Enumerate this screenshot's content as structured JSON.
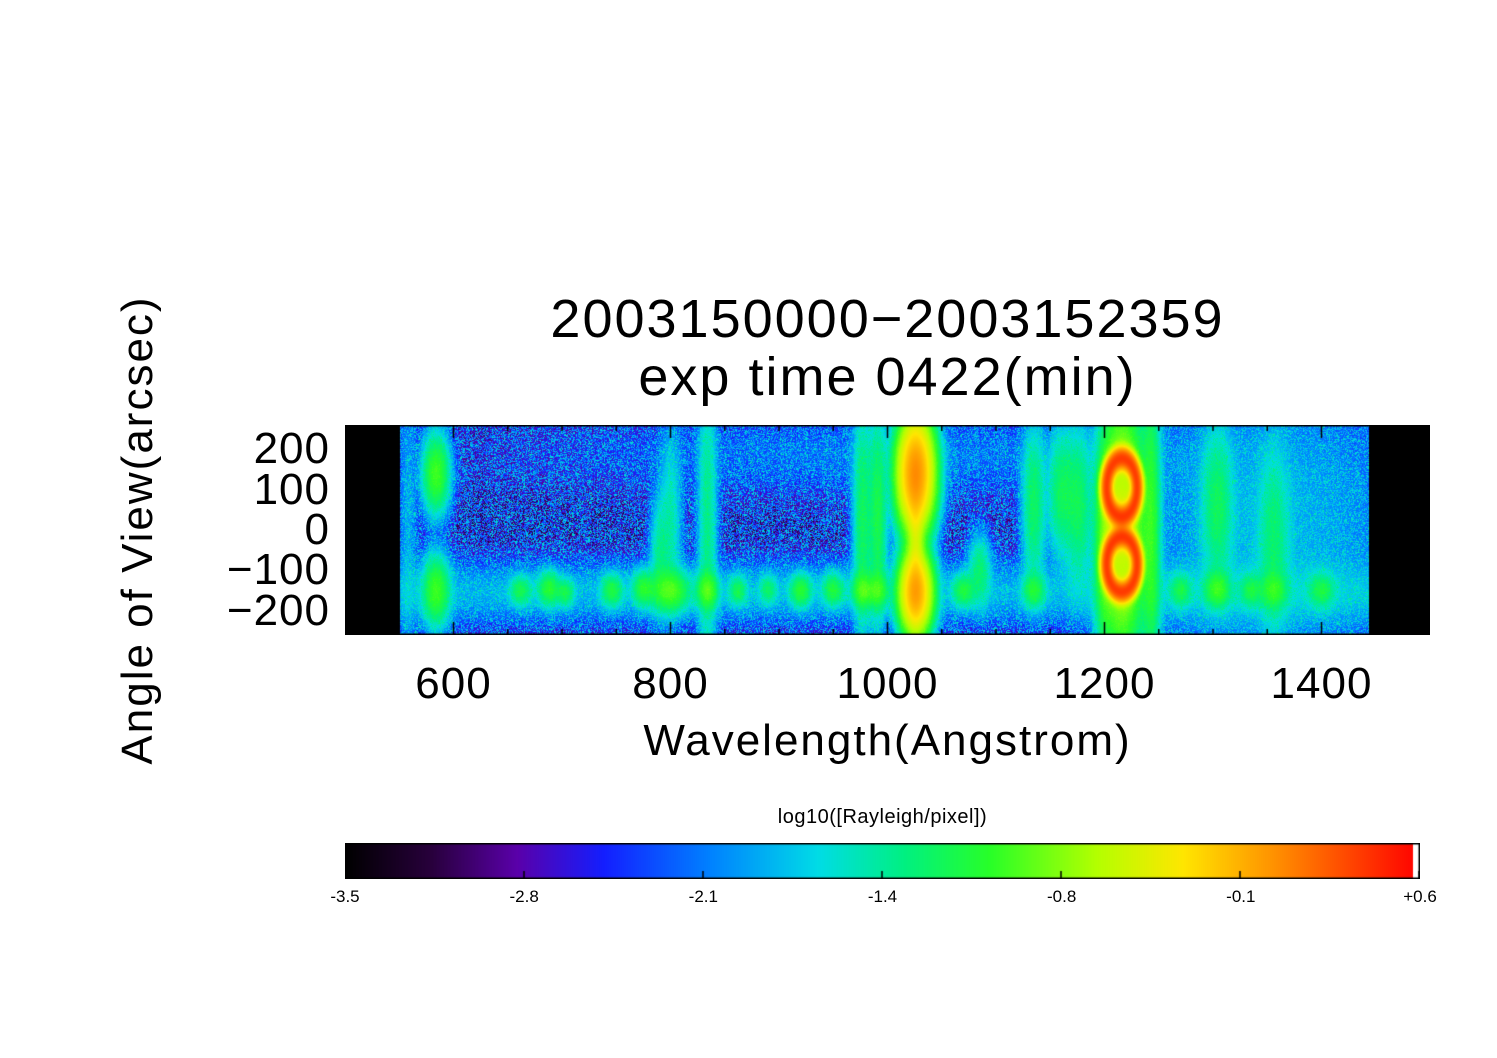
{
  "window_background": "#ffffff",
  "chart_data": {
    "type": "heatmap",
    "title": "2003150000−2003152359",
    "subtitle": "exp time 0422(min)",
    "xlabel": "Wavelength(Angstrom)",
    "ylabel": "Angle of View(arcsec)",
    "x_range": [
      500,
      1500
    ],
    "y_range": [
      -260,
      260
    ],
    "detector_wavelength_range": [
      551,
      1444
    ],
    "x_ticks": [
      {
        "label": "600",
        "value": 600
      },
      {
        "label": "800",
        "value": 800
      },
      {
        "label": "1000",
        "value": 1000
      },
      {
        "label": "1200",
        "value": 1200
      },
      {
        "label": "1400",
        "value": 1400
      }
    ],
    "y_ticks": [
      {
        "label": "200",
        "value": 200
      },
      {
        "label": "100",
        "value": 100
      },
      {
        "label": "0",
        "value": 0
      },
      {
        "label": "−100",
        "value": -100
      },
      {
        "label": "−200",
        "value": -200
      }
    ],
    "x_minor_step": 50,
    "y_minor_step": 50,
    "value_range": [
      -3.5,
      0.6
    ],
    "background_log10_level": -2.6,
    "noise": {
      "v_min": -3.35,
      "v_span": 1.75,
      "column_gain_min": 0.78,
      "column_gain_span": 0.55,
      "seed": 7
    },
    "limb_band": {
      "angle": -155,
      "sigma": 45,
      "amplitude": 0.009
    },
    "upper_haze": {
      "angle": 185,
      "sigma_angle": 60,
      "wl": 1005,
      "sigma_wl": 190,
      "amplitude": 0.004
    },
    "features": [
      {
        "type": "g",
        "wl": 584,
        "sw": 7,
        "ang": 140,
        "sa": 55,
        "A": 0.1
      },
      {
        "type": "g",
        "wl": 584,
        "sw": 7,
        "ang": -150,
        "sa": 50,
        "A": 0.09
      },
      {
        "type": "g",
        "wl": 558,
        "sw": 5,
        "ang": 0,
        "sa": 260,
        "A": 0.008
      },
      {
        "type": "g",
        "wl": 662,
        "sw": 6,
        "ang": -150,
        "sa": 22,
        "A": 0.05
      },
      {
        "type": "g",
        "wl": 688,
        "sw": 6,
        "ang": -145,
        "sa": 25,
        "A": 0.07
      },
      {
        "type": "g",
        "wl": 703,
        "sw": 5,
        "ang": -155,
        "sa": 20,
        "A": 0.05
      },
      {
        "type": "g",
        "wl": 746,
        "sw": 6,
        "ang": -150,
        "sa": 24,
        "A": 0.06
      },
      {
        "type": "g",
        "wl": 775,
        "sw": 6,
        "ang": -145,
        "sa": 26,
        "A": 0.07
      },
      {
        "type": "g",
        "wl": 790,
        "sw": 5,
        "ang": -60,
        "sa": 80,
        "A": 0.03
      },
      {
        "type": "g",
        "wl": 800,
        "sw": 10,
        "ang": -150,
        "sa": 30,
        "A": 0.1
      },
      {
        "type": "g",
        "wl": 800,
        "sw": 6,
        "ang": 20,
        "sa": 120,
        "A": 0.025
      },
      {
        "type": "g",
        "wl": 834,
        "sw": 5,
        "ang": 0,
        "sa": 220,
        "A": 0.035
      },
      {
        "type": "g",
        "wl": 834,
        "sw": 6,
        "ang": -150,
        "sa": 25,
        "A": 0.09
      },
      {
        "type": "g",
        "wl": 862,
        "sw": 5,
        "ang": -150,
        "sa": 22,
        "A": 0.05
      },
      {
        "type": "g",
        "wl": 890,
        "sw": 5,
        "ang": -148,
        "sa": 22,
        "A": 0.04
      },
      {
        "type": "g",
        "wl": 920,
        "sw": 6,
        "ang": -150,
        "sa": 24,
        "A": 0.07
      },
      {
        "type": "g",
        "wl": 950,
        "sw": 6,
        "ang": -148,
        "sa": 24,
        "A": 0.06
      },
      {
        "type": "g",
        "wl": 977,
        "sw": 5,
        "ang": 20,
        "sa": 160,
        "A": 0.05
      },
      {
        "type": "g",
        "wl": 977,
        "sw": 6,
        "ang": -150,
        "sa": 25,
        "A": 0.08
      },
      {
        "type": "g",
        "wl": 991,
        "sw": 5,
        "ang": 30,
        "sa": 150,
        "A": 0.06
      },
      {
        "type": "g",
        "wl": 991,
        "sw": 6,
        "ang": -150,
        "sa": 25,
        "A": 0.07
      },
      {
        "type": "g",
        "wl": 1026,
        "sw": 9,
        "ang": 140,
        "sa": 75,
        "A": 1.1
      },
      {
        "type": "g",
        "wl": 1026,
        "sw": 8,
        "ang": -155,
        "sa": 55,
        "A": 0.9
      },
      {
        "type": "g",
        "wl": 1026,
        "sw": 4,
        "ang": -20,
        "sa": 120,
        "A": 0.18
      },
      {
        "type": "g",
        "wl": 1070,
        "sw": 6,
        "ang": -150,
        "sa": 24,
        "A": 0.06
      },
      {
        "type": "g",
        "wl": 1085,
        "sw": 6,
        "ang": -100,
        "sa": 50,
        "A": 0.04
      },
      {
        "type": "g",
        "wl": 1135,
        "sw": 6,
        "ang": 60,
        "sa": 110,
        "A": 0.05
      },
      {
        "type": "g",
        "wl": 1135,
        "sw": 6,
        "ang": -150,
        "sa": 25,
        "A": 0.06
      },
      {
        "type": "g",
        "wl": 1160,
        "sw": 7,
        "ang": 90,
        "sa": 90,
        "A": 0.05
      },
      {
        "type": "g",
        "wl": 1176,
        "sw": 7,
        "ang": 60,
        "sa": 110,
        "A": 0.05
      },
      {
        "type": "g",
        "wl": 1200,
        "sw": 5,
        "ang": -40,
        "sa": 140,
        "A": 0.07
      },
      {
        "type": "r",
        "wl": 1216,
        "rw": 14,
        "ang": 105,
        "ra": 72,
        "w": 0.22,
        "A": 2.2
      },
      {
        "type": "r",
        "wl": 1216,
        "rw": 14,
        "ang": -85,
        "ra": 68,
        "w": 0.22,
        "A": 2.2
      },
      {
        "type": "g",
        "wl": 1216,
        "sw": 11,
        "ang": 10,
        "sa": 170,
        "A": 0.3
      },
      {
        "type": "g",
        "wl": 1243,
        "sw": 5,
        "ang": 0,
        "sa": 230,
        "A": 0.08
      },
      {
        "type": "g",
        "wl": 1270,
        "sw": 6,
        "ang": -150,
        "sa": 24,
        "A": 0.05
      },
      {
        "type": "g",
        "wl": 1304,
        "sw": 8,
        "ang": 60,
        "sa": 110,
        "A": 0.045
      },
      {
        "type": "g",
        "wl": 1304,
        "sw": 7,
        "ang": -148,
        "sa": 26,
        "A": 0.08
      },
      {
        "type": "g",
        "wl": 1335,
        "sw": 6,
        "ang": -150,
        "sa": 24,
        "A": 0.05
      },
      {
        "type": "g",
        "wl": 1356,
        "sw": 8,
        "ang": -30,
        "sa": 130,
        "A": 0.035
      },
      {
        "type": "g",
        "wl": 1356,
        "sw": 7,
        "ang": -150,
        "sa": 25,
        "A": 0.06
      },
      {
        "type": "g",
        "wl": 1400,
        "sw": 7,
        "ang": -150,
        "sa": 25,
        "A": 0.05
      },
      {
        "type": "g",
        "wl": 1350,
        "sw": 80,
        "ang": 0,
        "sa": 220,
        "A": 0.01
      }
    ],
    "colorbar": {
      "title": "log10([Rayleigh/pixel])",
      "range": [
        -3.5,
        0.6
      ],
      "tick_labels": [
        "-3.5",
        "-2.8",
        "-2.1",
        "-1.4",
        "-0.8",
        "-0.1",
        "+0.6"
      ],
      "top_entry_color": "#ffffff",
      "stops": [
        {
          "t": 0.0,
          "c": [
            0,
            0,
            0
          ]
        },
        {
          "t": 0.08,
          "c": [
            40,
            0,
            60
          ]
        },
        {
          "t": 0.16,
          "c": [
            90,
            0,
            170
          ]
        },
        {
          "t": 0.24,
          "c": [
            20,
            30,
            255
          ]
        },
        {
          "t": 0.34,
          "c": [
            0,
            130,
            255
          ]
        },
        {
          "t": 0.44,
          "c": [
            0,
            220,
            230
          ]
        },
        {
          "t": 0.52,
          "c": [
            0,
            240,
            130
          ]
        },
        {
          "t": 0.6,
          "c": [
            40,
            255,
            40
          ]
        },
        {
          "t": 0.7,
          "c": [
            180,
            255,
            0
          ]
        },
        {
          "t": 0.78,
          "c": [
            255,
            230,
            0
          ]
        },
        {
          "t": 0.87,
          "c": [
            255,
            140,
            0
          ]
        },
        {
          "t": 1.0,
          "c": [
            255,
            0,
            0
          ]
        }
      ]
    }
  }
}
